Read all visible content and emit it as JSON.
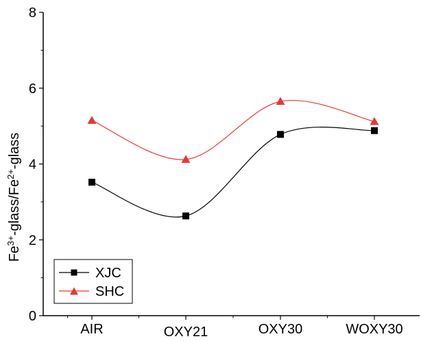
{
  "chart_data": {
    "type": "line",
    "categories": [
      "AIR",
      "OXY21",
      "OXY30",
      "WOXY30"
    ],
    "ylabel": "Fe³⁺-glass/Fe²⁺-glass",
    "ylabel_parts": {
      "part1": "Fe",
      "sup1": "3+",
      "part2": "-glass/Fe",
      "sup2": "2+",
      "part3": "-glass"
    },
    "ylim": [
      0,
      8
    ],
    "yticks": [
      0,
      2,
      4,
      6,
      8
    ],
    "series": [
      {
        "name": "XJC",
        "values": [
          3.52,
          2.63,
          4.78,
          4.88
        ],
        "color": "#000000",
        "marker": "square"
      },
      {
        "name": "SHC",
        "values": [
          5.15,
          4.12,
          5.65,
          5.12
        ],
        "color": "#e53935",
        "marker": "triangle"
      }
    ],
    "legend_position": "bottom-left",
    "grid": false,
    "curve": "smooth"
  }
}
